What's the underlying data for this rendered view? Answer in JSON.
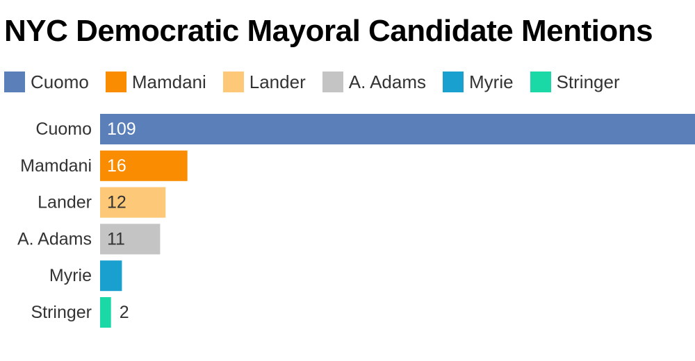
{
  "chart_data": {
    "type": "bar",
    "orientation": "horizontal",
    "title": "NYC Democratic Mayoral Candidate Mentions",
    "categories": [
      "Cuomo",
      "Mamdani",
      "Lander",
      "A. Adams",
      "Myrie",
      "Stringer"
    ],
    "values": [
      109,
      16,
      12,
      11,
      4,
      2
    ],
    "colors": [
      "#5b80b9",
      "#f98c00",
      "#fdc877",
      "#c4c4c4",
      "#1aa0cf",
      "#1ad9a6"
    ],
    "value_label_colors": [
      "#ffffff",
      "#ffffff",
      "#333333",
      "#333333",
      "#ffffff",
      "#333333"
    ],
    "legend": {
      "placement": "top-left",
      "entries": [
        "Cuomo",
        "Mamdani",
        "Lander",
        "A. Adams",
        "Myrie",
        "Stringer"
      ]
    },
    "xlim": [
      0,
      109
    ],
    "grid": false,
    "xlabel": "",
    "ylabel": ""
  }
}
